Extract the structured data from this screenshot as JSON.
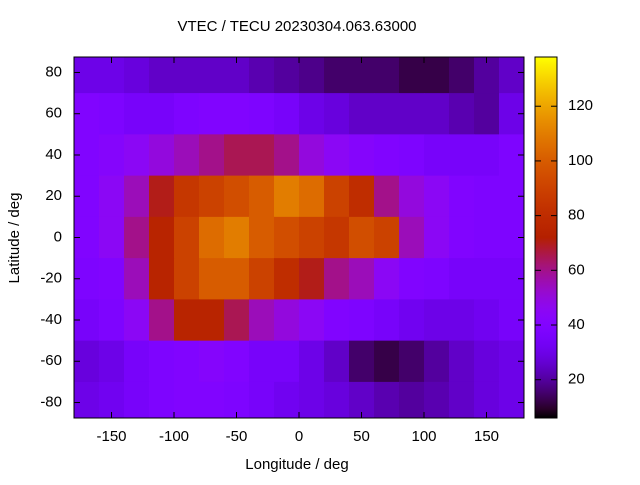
{
  "chart_data": {
    "type": "heatmap",
    "title": "VTEC / TECU 20230304.063.63000",
    "x_label": "Longitude / deg",
    "y_label": "Latitude / deg",
    "x": [
      -170,
      -150,
      -130,
      -110,
      -90,
      -70,
      -50,
      -30,
      -10,
      10,
      30,
      50,
      70,
      90,
      110,
      130,
      150,
      170
    ],
    "y": [
      80,
      60,
      40,
      20,
      0,
      -20,
      -40,
      -60,
      -80
    ],
    "z": [
      [
        30,
        30,
        28,
        25,
        25,
        25,
        25,
        22,
        20,
        18,
        15,
        15,
        15,
        12,
        12,
        15,
        20,
        25
      ],
      [
        40,
        38,
        35,
        35,
        38,
        40,
        40,
        38,
        35,
        30,
        28,
        25,
        25,
        25,
        25,
        22,
        20,
        30
      ],
      [
        40,
        42,
        45,
        50,
        55,
        60,
        65,
        65,
        60,
        50,
        45,
        42,
        40,
        38,
        35,
        35,
        35,
        38
      ],
      [
        40,
        45,
        55,
        70,
        85,
        90,
        95,
        100,
        110,
        105,
        90,
        80,
        60,
        50,
        45,
        40,
        38,
        38
      ],
      [
        40,
        45,
        60,
        75,
        90,
        105,
        110,
        100,
        95,
        90,
        85,
        95,
        90,
        55,
        45,
        40,
        38,
        38
      ],
      [
        38,
        40,
        55,
        75,
        90,
        100,
        100,
        90,
        80,
        70,
        60,
        55,
        45,
        40,
        38,
        35,
        35,
        35
      ],
      [
        35,
        38,
        45,
        60,
        75,
        75,
        65,
        55,
        50,
        45,
        40,
        38,
        35,
        32,
        30,
        30,
        32,
        35
      ],
      [
        28,
        30,
        35,
        38,
        40,
        42,
        40,
        35,
        35,
        30,
        25,
        15,
        12,
        15,
        20,
        25,
        28,
        30
      ],
      [
        30,
        32,
        35,
        38,
        40,
        40,
        38,
        35,
        32,
        30,
        28,
        25,
        22,
        20,
        22,
        25,
        28,
        30
      ]
    ],
    "xlim": [
      -180,
      180
    ],
    "ylim": [
      -87.5,
      87.5
    ],
    "xticks": [
      -150,
      -100,
      -50,
      0,
      50,
      100,
      150
    ],
    "yticks": [
      -80,
      -60,
      -40,
      -20,
      0,
      20,
      40,
      60,
      80
    ],
    "zlim": [
      6,
      138
    ],
    "zticks": [
      20,
      40,
      60,
      80,
      100,
      120
    ],
    "colormap": "gnuplot"
  }
}
